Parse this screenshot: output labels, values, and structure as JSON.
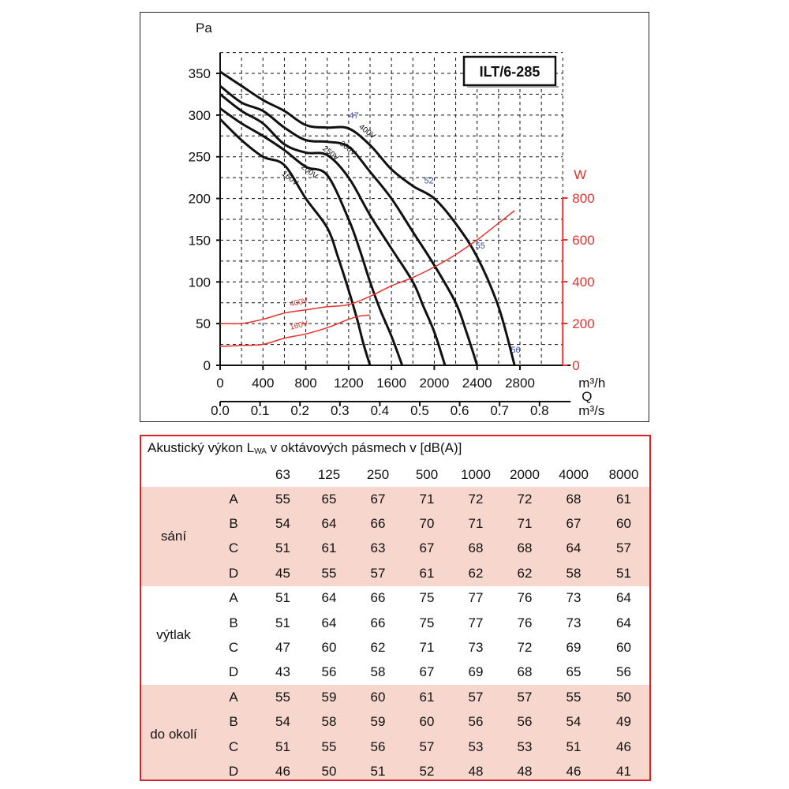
{
  "colors": {
    "curve": "#111111",
    "power": "#e8322d",
    "power_axis": "#e8322d",
    "efficiency_label": "#3a4aa0",
    "grid": "#111111",
    "table_border": "#d8232a",
    "table_band": "#f6d6cd"
  },
  "chart_data": {
    "type": "line",
    "title": "ILT/6-285",
    "ylabel": "Pa",
    "y2label": "W",
    "xlabel_primary": "m³/h",
    "xlabel_secondary_q": "Q",
    "xlabel_secondary_unit": "m³/s",
    "xlim": [
      0,
      4000
    ],
    "ylim": [
      0,
      350
    ],
    "y2lim": [
      0,
      800
    ],
    "x_ticks": [
      "0",
      "400",
      "800",
      "1200",
      "1600",
      "2000",
      "2400",
      "2800"
    ],
    "x_tick_values": [
      0,
      400,
      800,
      1200,
      1600,
      2000,
      2400,
      2800
    ],
    "x2_ticks": [
      "0.0",
      "0.1",
      "0.2",
      "0.3",
      "0.4",
      "0.5",
      "0.6",
      "0.7",
      "0.8"
    ],
    "y_ticks": [
      "0",
      "50",
      "100",
      "150",
      "200",
      "250",
      "300",
      "350"
    ],
    "y_tick_values": [
      0,
      50,
      100,
      150,
      200,
      250,
      300,
      350
    ],
    "y2_ticks": [
      "0",
      "200",
      "400",
      "600",
      "800"
    ],
    "y2_tick_values": [
      0,
      200,
      400,
      600,
      800
    ],
    "grid": true,
    "series": [
      {
        "name": "160V",
        "x": [
          0,
          200,
          400,
          600,
          800,
          1000,
          1100,
          1200,
          1280,
          1340,
          1400
        ],
        "y": [
          295,
          270,
          250,
          240,
          200,
          165,
          130,
          90,
          55,
          25,
          0
        ]
      },
      {
        "name": "200V",
        "x": [
          0,
          200,
          400,
          600,
          800,
          1000,
          1200,
          1300,
          1400,
          1500,
          1600,
          1700
        ],
        "y": [
          308,
          290,
          275,
          258,
          238,
          228,
          175,
          140,
          100,
          65,
          35,
          0
        ]
      },
      {
        "name": "250V",
        "x": [
          0,
          200,
          400,
          600,
          800,
          1000,
          1200,
          1400,
          1600,
          1800,
          1900,
          2000,
          2100
        ],
        "y": [
          325,
          305,
          290,
          265,
          255,
          252,
          225,
          180,
          140,
          100,
          70,
          40,
          0
        ]
      },
      {
        "name": "300V",
        "x": [
          0,
          200,
          400,
          600,
          800,
          1000,
          1200,
          1400,
          1600,
          1800,
          2000,
          2200,
          2300,
          2400
        ],
        "y": [
          335,
          315,
          305,
          285,
          270,
          268,
          262,
          232,
          200,
          160,
          120,
          75,
          40,
          0
        ]
      },
      {
        "name": "400V",
        "x": [
          0,
          200,
          400,
          600,
          800,
          1000,
          1200,
          1400,
          1600,
          1800,
          2000,
          2200,
          2400,
          2600,
          2750
        ],
        "y": [
          352,
          335,
          318,
          305,
          288,
          285,
          284,
          264,
          235,
          215,
          200,
          170,
          130,
          70,
          0
        ]
      }
    ],
    "power_series": [
      {
        "name": "400V",
        "x": [
          0,
          200,
          400,
          600,
          800,
          1000,
          1200,
          1400,
          1600,
          1800,
          2000,
          2200,
          2400,
          2600,
          2750
        ],
        "y": [
          200,
          200,
          220,
          250,
          265,
          280,
          290,
          330,
          380,
          420,
          470,
          530,
          600,
          680,
          740
        ]
      },
      {
        "name": "160V",
        "x": [
          0,
          200,
          400,
          600,
          800,
          1000,
          1200,
          1300,
          1400
        ],
        "y": [
          90,
          95,
          100,
          130,
          150,
          180,
          220,
          235,
          240
        ]
      }
    ],
    "efficiency_labels": [
      {
        "text": "47",
        "x": 1250,
        "y": 296
      },
      {
        "text": "52",
        "x": 1950,
        "y": 218
      },
      {
        "text": "55",
        "x": 2430,
        "y": 140
      },
      {
        "text": "56",
        "x": 2760,
        "y": 15
      }
    ]
  },
  "table": {
    "title_main": "Akustický výkon L",
    "title_sub": "WA",
    "title_rest": " v oktávových pásmech v [dB(A)]",
    "headers": [
      "63",
      "125",
      "250",
      "500",
      "1000",
      "2000",
      "4000",
      "8000"
    ],
    "groups": [
      {
        "name": "sání",
        "rows": [
          {
            "label": "A",
            "values": [
              "55",
              "65",
              "67",
              "71",
              "72",
              "72",
              "68",
              "61"
            ]
          },
          {
            "label": "B",
            "values": [
              "54",
              "64",
              "66",
              "70",
              "71",
              "71",
              "67",
              "60"
            ]
          },
          {
            "label": "C",
            "values": [
              "51",
              "61",
              "63",
              "67",
              "68",
              "68",
              "64",
              "57"
            ]
          },
          {
            "label": "D",
            "values": [
              "45",
              "55",
              "57",
              "61",
              "62",
              "62",
              "58",
              "51"
            ]
          }
        ]
      },
      {
        "name": "výtlak",
        "rows": [
          {
            "label": "A",
            "values": [
              "51",
              "64",
              "66",
              "75",
              "77",
              "76",
              "73",
              "64"
            ]
          },
          {
            "label": "B",
            "values": [
              "51",
              "64",
              "66",
              "75",
              "77",
              "76",
              "73",
              "64"
            ]
          },
          {
            "label": "C",
            "values": [
              "47",
              "60",
              "62",
              "71",
              "73",
              "72",
              "69",
              "60"
            ]
          },
          {
            "label": "D",
            "values": [
              "43",
              "56",
              "58",
              "67",
              "69",
              "68",
              "65",
              "56"
            ]
          }
        ]
      },
      {
        "name": "do okolí",
        "rows": [
          {
            "label": "A",
            "values": [
              "55",
              "59",
              "60",
              "61",
              "57",
              "57",
              "55",
              "50"
            ]
          },
          {
            "label": "B",
            "values": [
              "54",
              "58",
              "59",
              "60",
              "56",
              "56",
              "54",
              "49"
            ]
          },
          {
            "label": "C",
            "values": [
              "51",
              "55",
              "56",
              "57",
              "53",
              "53",
              "51",
              "46"
            ]
          },
          {
            "label": "D",
            "values": [
              "46",
              "50",
              "51",
              "52",
              "48",
              "48",
              "46",
              "41"
            ]
          }
        ]
      }
    ]
  }
}
